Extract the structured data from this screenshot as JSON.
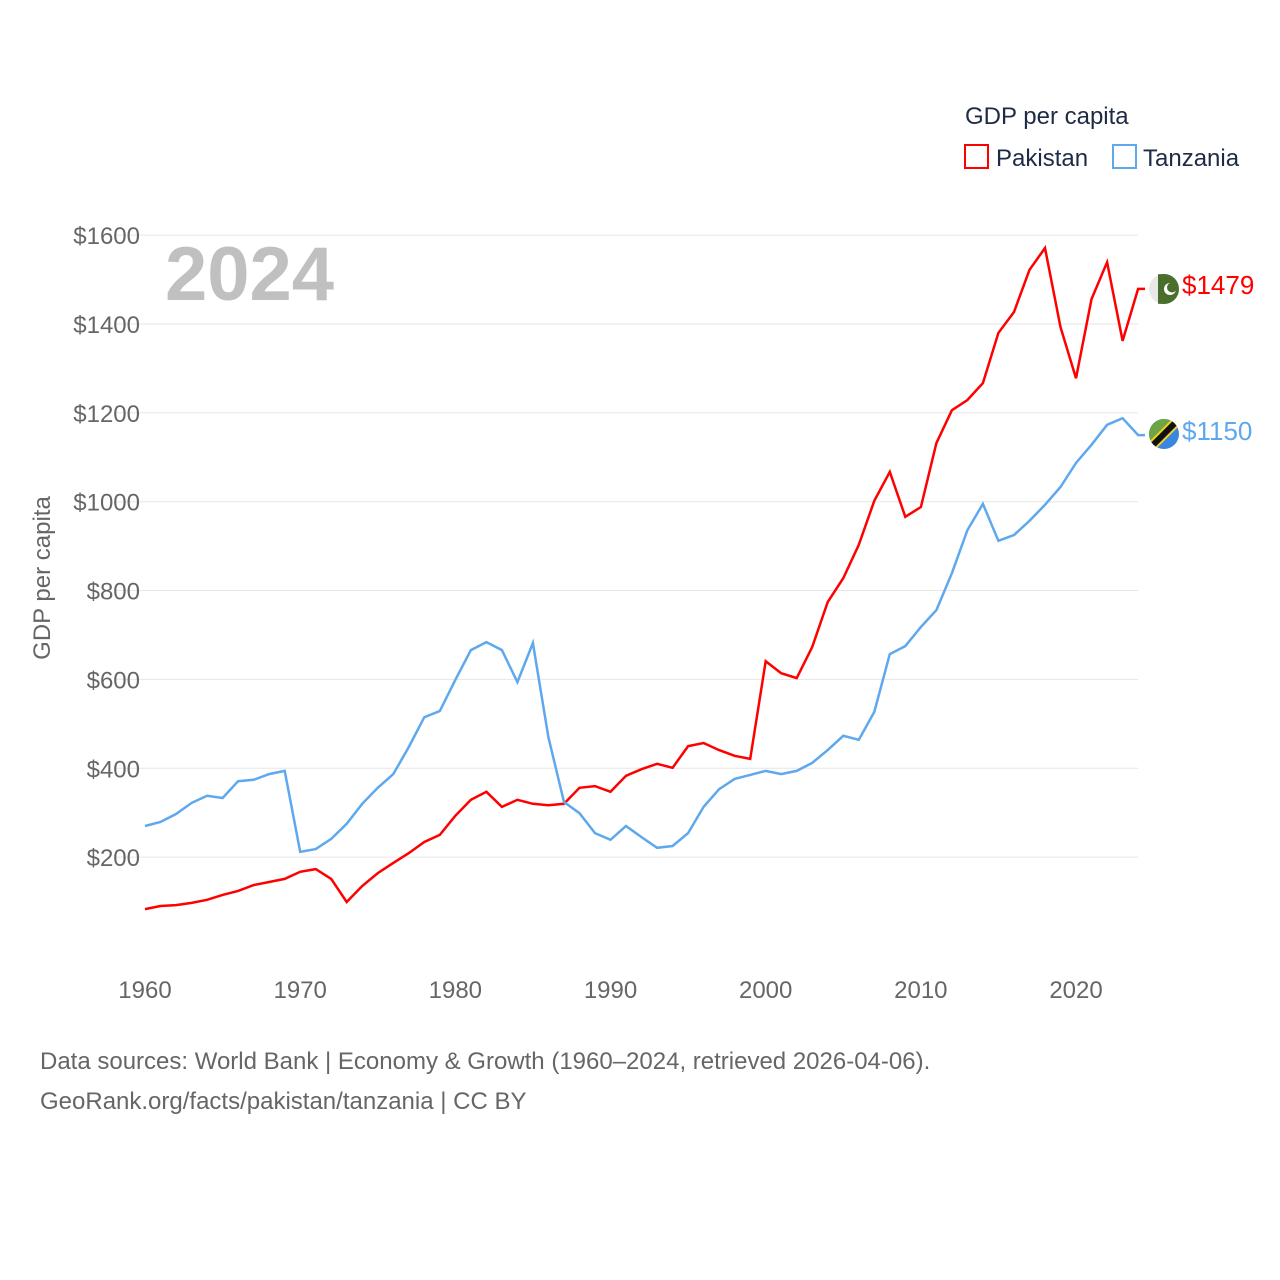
{
  "chart_data": {
    "type": "line",
    "title": "GDP per capita",
    "big_year_label": "2024",
    "xlabel": "",
    "ylabel": "GDP per capita",
    "xlim": [
      1960,
      2024
    ],
    "ylim": [
      0,
      1600
    ],
    "x_ticks": [
      1960,
      1970,
      1980,
      1990,
      2000,
      2010,
      2020
    ],
    "y_ticks": [
      200,
      400,
      600,
      800,
      1000,
      1200,
      1400,
      1600
    ],
    "y_tick_labels": [
      "$200",
      "$400",
      "$600",
      "$800",
      "$1000",
      "$1200",
      "$1400",
      "$1600"
    ],
    "grid": true,
    "legend_position": "top-right",
    "x": [
      1960,
      1961,
      1962,
      1963,
      1964,
      1965,
      1966,
      1967,
      1968,
      1969,
      1970,
      1971,
      1972,
      1973,
      1974,
      1975,
      1976,
      1977,
      1978,
      1979,
      1980,
      1981,
      1982,
      1983,
      1984,
      1985,
      1986,
      1987,
      1988,
      1989,
      1990,
      1991,
      1992,
      1993,
      1994,
      1995,
      1996,
      1997,
      1998,
      1999,
      2000,
      2001,
      2002,
      2003,
      2004,
      2005,
      2006,
      2007,
      2008,
      2009,
      2010,
      2011,
      2012,
      2013,
      2014,
      2015,
      2016,
      2017,
      2018,
      2019,
      2020,
      2021,
      2022,
      2023,
      2024
    ],
    "series": [
      {
        "name": "Pakistan",
        "color": "#ff0000",
        "end_label": "$1479",
        "flag": "pakistan-flag",
        "values": [
          83,
          90,
          92,
          97,
          104,
          115,
          124,
          137,
          144,
          151,
          167,
          173,
          151,
          99,
          135,
          164,
          187,
          209,
          234,
          250,
          293,
          329,
          347,
          313,
          329,
          320,
          317,
          320,
          356,
          360,
          347,
          383,
          398,
          410,
          401,
          450,
          457,
          441,
          428,
          421,
          641,
          614,
          603,
          673,
          774,
          828,
          903,
          1002,
          1067,
          966,
          988,
          1132,
          1206,
          1229,
          1267,
          1380,
          1427,
          1522,
          1571,
          1393,
          1278,
          1456,
          1539,
          1362,
          1479
        ]
      },
      {
        "name": "Tanzania",
        "color": "#5ea8ee",
        "end_label": "$1150",
        "flag": "tanzania-flag",
        "values": [
          270,
          279,
          297,
          322,
          338,
          333,
          371,
          374,
          387,
          394,
          212,
          218,
          241,
          275,
          320,
          356,
          387,
          448,
          515,
          529,
          599,
          666,
          684,
          666,
          594,
          682,
          470,
          324,
          299,
          254,
          239,
          270,
          245,
          221,
          225,
          254,
          313,
          353,
          376,
          385,
          394,
          387,
          394,
          412,
          441,
          473,
          464,
          527,
          657,
          675,
          718,
          756,
          839,
          936,
          995,
          912,
          925,
          957,
          993,
          1033,
          1087,
          1128,
          1173,
          1188,
          1150
        ]
      }
    ]
  },
  "footer": {
    "line1": "Data sources: World Bank | Economy & Growth (1960–2024, retrieved 2026-04-06).",
    "line2": "GeoRank.org/facts/pakistan/tanzania | CC BY"
  }
}
